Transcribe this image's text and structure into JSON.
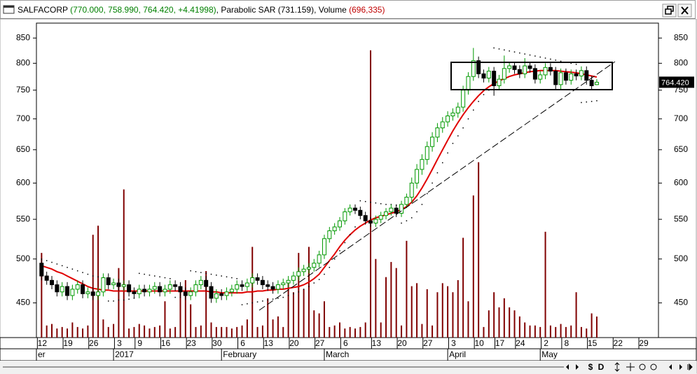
{
  "window": {
    "header": [
      {
        "text": "SALFACORP ",
        "color": "#000000"
      },
      {
        "text": "(770.000, 758.990, 764.420, +4.41998)",
        "color": "#008000"
      },
      {
        "text": ", Parabolic SAR (731.159)",
        "color": "#000000"
      },
      {
        "text": ", Volume ",
        "color": "#000000"
      },
      {
        "text": "(696,335)",
        "color": "#c00000"
      }
    ],
    "toolbar": {
      "currency": "$",
      "period": "D"
    }
  },
  "chart_data": {
    "type": "candlestick",
    "log_scale": true,
    "ylim": [
      414,
      881
    ],
    "yticks": [
      450,
      500,
      550,
      600,
      650,
      700,
      750,
      800,
      850
    ],
    "xlim": [
      -1,
      120
    ],
    "xticks": [
      {
        "value": 0,
        "label": "12"
      },
      {
        "value": 5,
        "label": "19"
      },
      {
        "value": 10,
        "label": "26"
      },
      {
        "value": 15,
        "label": "3"
      },
      {
        "value": 19,
        "label": "9"
      },
      {
        "value": 24,
        "label": "16"
      },
      {
        "value": 29,
        "label": "23"
      },
      {
        "value": 34,
        "label": "30"
      },
      {
        "value": 39,
        "label": "6"
      },
      {
        "value": 44,
        "label": "13"
      },
      {
        "value": 49,
        "label": "20"
      },
      {
        "value": 54,
        "label": "27"
      },
      {
        "value": 59,
        "label": "6"
      },
      {
        "value": 65,
        "label": "13"
      },
      {
        "value": 70,
        "label": "20"
      },
      {
        "value": 75,
        "label": "27"
      },
      {
        "value": 80,
        "label": "3"
      },
      {
        "value": 85,
        "label": "10"
      },
      {
        "value": 89,
        "label": "17"
      },
      {
        "value": 93,
        "label": "24"
      },
      {
        "value": 98,
        "label": "2"
      },
      {
        "value": 102,
        "label": "8"
      },
      {
        "value": 107,
        "label": "15"
      },
      {
        "value": 112,
        "label": "22"
      },
      {
        "value": 117,
        "label": "29"
      }
    ],
    "month_ticks": [
      {
        "value": -1,
        "label": "er"
      },
      {
        "value": 14,
        "label": "2017"
      },
      {
        "value": 35,
        "label": "February"
      },
      {
        "value": 55,
        "label": "March"
      },
      {
        "value": 79,
        "label": "April"
      },
      {
        "value": 97,
        "label": "May"
      }
    ],
    "up_color": "#009900",
    "down_color": "#000000",
    "open": [
      495,
      480,
      475,
      470,
      462,
      468,
      458,
      465,
      470,
      460,
      462,
      458,
      462,
      478,
      470,
      472,
      468,
      470,
      462,
      460,
      465,
      462,
      465,
      468,
      462,
      465,
      470,
      468,
      462,
      458,
      462,
      470,
      475,
      468,
      455,
      460,
      458,
      462,
      465,
      470,
      468,
      472,
      478,
      475,
      470,
      468,
      465,
      470,
      472,
      475,
      480,
      485,
      488,
      490,
      495,
      505,
      525,
      535,
      540,
      548,
      560,
      565,
      562,
      555,
      548,
      545,
      550,
      555,
      560,
      565,
      558,
      570,
      580,
      600,
      620,
      635,
      655,
      670,
      685,
      695,
      705,
      710,
      720,
      750,
      775,
      805,
      780,
      772,
      785,
      758,
      770,
      790,
      795,
      788,
      780,
      795,
      790,
      770,
      778,
      792,
      785,
      760,
      782,
      768,
      780,
      776,
      786,
      768,
      760
    ],
    "high": [
      500,
      485,
      480,
      475,
      473,
      473,
      470,
      475,
      475,
      467,
      467,
      467,
      483,
      483,
      477,
      477,
      475,
      475,
      467,
      470,
      470,
      470,
      473,
      473,
      470,
      475,
      475,
      473,
      467,
      467,
      475,
      480,
      480,
      473,
      465,
      465,
      467,
      470,
      475,
      475,
      477,
      483,
      483,
      480,
      475,
      473,
      475,
      477,
      480,
      485,
      490,
      493,
      495,
      500,
      510,
      530,
      540,
      545,
      553,
      565,
      570,
      570,
      567,
      560,
      553,
      555,
      560,
      565,
      570,
      570,
      575,
      585,
      608,
      628,
      643,
      663,
      678,
      693,
      703,
      713,
      718,
      728,
      758,
      783,
      830,
      813,
      788,
      793,
      793,
      778,
      815,
      803,
      803,
      796,
      810,
      803,
      798,
      786,
      800,
      800,
      793,
      790,
      790,
      788,
      788,
      794,
      794,
      776,
      770
    ],
    "low": [
      475,
      470,
      465,
      457,
      457,
      453,
      453,
      460,
      455,
      455,
      453,
      453,
      457,
      465,
      465,
      463,
      463,
      457,
      455,
      455,
      457,
      457,
      460,
      457,
      457,
      460,
      463,
      457,
      453,
      453,
      457,
      465,
      463,
      450,
      450,
      453,
      453,
      457,
      460,
      463,
      463,
      467,
      470,
      465,
      463,
      460,
      460,
      465,
      467,
      470,
      475,
      480,
      483,
      485,
      490,
      500,
      520,
      530,
      535,
      543,
      555,
      557,
      550,
      543,
      540,
      540,
      545,
      550,
      555,
      553,
      553,
      565,
      572,
      592,
      612,
      627,
      647,
      662,
      677,
      687,
      697,
      702,
      712,
      742,
      767,
      772,
      764,
      764,
      740,
      750,
      762,
      782,
      780,
      772,
      772,
      782,
      762,
      762,
      770,
      777,
      752,
      752,
      760,
      760,
      768,
      768,
      760,
      750,
      758.99
    ],
    "close": [
      480,
      475,
      470,
      462,
      468,
      458,
      465,
      470,
      460,
      462,
      458,
      462,
      478,
      470,
      472,
      468,
      470,
      462,
      460,
      465,
      462,
      465,
      468,
      462,
      465,
      470,
      468,
      462,
      458,
      462,
      470,
      475,
      468,
      455,
      460,
      458,
      462,
      465,
      470,
      468,
      472,
      478,
      475,
      470,
      468,
      465,
      470,
      472,
      475,
      480,
      485,
      488,
      490,
      495,
      505,
      525,
      535,
      540,
      548,
      560,
      565,
      562,
      555,
      548,
      545,
      550,
      555,
      560,
      565,
      558,
      570,
      580,
      600,
      620,
      635,
      655,
      670,
      685,
      695,
      705,
      710,
      720,
      750,
      775,
      805,
      780,
      772,
      785,
      758,
      770,
      790,
      795,
      788,
      780,
      795,
      790,
      770,
      778,
      792,
      785,
      760,
      782,
      768,
      780,
      776,
      786,
      768,
      758,
      764.42
    ],
    "ma": [
      492,
      490,
      488,
      485,
      483,
      480,
      477,
      474,
      471,
      468,
      466,
      465,
      464,
      464,
      463,
      463,
      463,
      463,
      463,
      463,
      463,
      463,
      463,
      463,
      463,
      463,
      463,
      463,
      463,
      463,
      463,
      463,
      463,
      462,
      462,
      461,
      461,
      461,
      461,
      461,
      462,
      462,
      463,
      463,
      464,
      464,
      465,
      465,
      466,
      467,
      468,
      470,
      473,
      477,
      482,
      490,
      498,
      506,
      515,
      523,
      530,
      536,
      541,
      545,
      549,
      552,
      554,
      556,
      558,
      560,
      563,
      567,
      573,
      582,
      593,
      606,
      620,
      635,
      650,
      665,
      680,
      694,
      707,
      719,
      730,
      740,
      749,
      756,
      762,
      767,
      771,
      775,
      778,
      780,
      782,
      784,
      785,
      786,
      786,
      786,
      786,
      785,
      784,
      783,
      782,
      780,
      778,
      776,
      774
    ],
    "ma_color": "#e00000",
    "sar": [
      500,
      498,
      496,
      494,
      492,
      490,
      488,
      486,
      484,
      482,
      480,
      479,
      478,
      452,
      452,
      453,
      453,
      454,
      455,
      483,
      482,
      481,
      480,
      479,
      478,
      477,
      456,
      456,
      457,
      486,
      485,
      484,
      483,
      482,
      481,
      480,
      479,
      478,
      477,
      448,
      449,
      450,
      451,
      452,
      453,
      454,
      455,
      456,
      458,
      460,
      462,
      465,
      468,
      472,
      476,
      482,
      490,
      500,
      510,
      520,
      530,
      540,
      575,
      574,
      573,
      572,
      571,
      570,
      570,
      569,
      545,
      548,
      552,
      560,
      570,
      585,
      600,
      615,
      630,
      645,
      660,
      672,
      685,
      700,
      715,
      730,
      742,
      750,
      830,
      828,
      826,
      824,
      822,
      820,
      818,
      816,
      814,
      812,
      810,
      808,
      806,
      804,
      802,
      800,
      798,
      728,
      729,
      730,
      731.159
    ],
    "sar_color": "#000000",
    "volume": [
      2800000,
      400000,
      450000,
      300000,
      350000,
      300000,
      500000,
      350000,
      300000,
      400000,
      3400000,
      3700000,
      600000,
      350000,
      450000,
      2300000,
      4900000,
      300000,
      350000,
      450000,
      400000,
      300000,
      350000,
      400000,
      1200000,
      300000,
      350000,
      1600000,
      1900000,
      1100000,
      350000,
      400000,
      2200000,
      500000,
      350000,
      350000,
      350000,
      300000,
      350000,
      400000,
      600000,
      3000000,
      350000,
      400000,
      1300000,
      600000,
      700000,
      350000,
      1900000,
      1500000,
      2800000,
      1600000,
      3000000,
      900000,
      800000,
      1200000,
      350000,
      400000,
      500000,
      300000,
      350000,
      300000,
      350000,
      500000,
      9500000,
      2600000,
      500000,
      2000000,
      2500000,
      2300000,
      400000,
      3200000,
      1700000,
      1800000,
      450000,
      1600000,
      400000,
      1500000,
      1800000,
      1700000,
      1500000,
      1900000,
      3300000,
      1200000,
      4700000,
      5800000,
      350000,
      900000,
      1500000,
      1000000,
      1300000,
      1000000,
      900000,
      700000,
      500000,
      400000,
      400000,
      350000,
      3500000,
      400000,
      350000,
      450000,
      350000,
      400000,
      1500000,
      350000,
      300000,
      800000,
      696335
    ],
    "volume_lim": [
      0,
      10400000
    ],
    "volume_color": "#800000",
    "last_price": {
      "value": 764.42,
      "label": "764.420"
    }
  }
}
